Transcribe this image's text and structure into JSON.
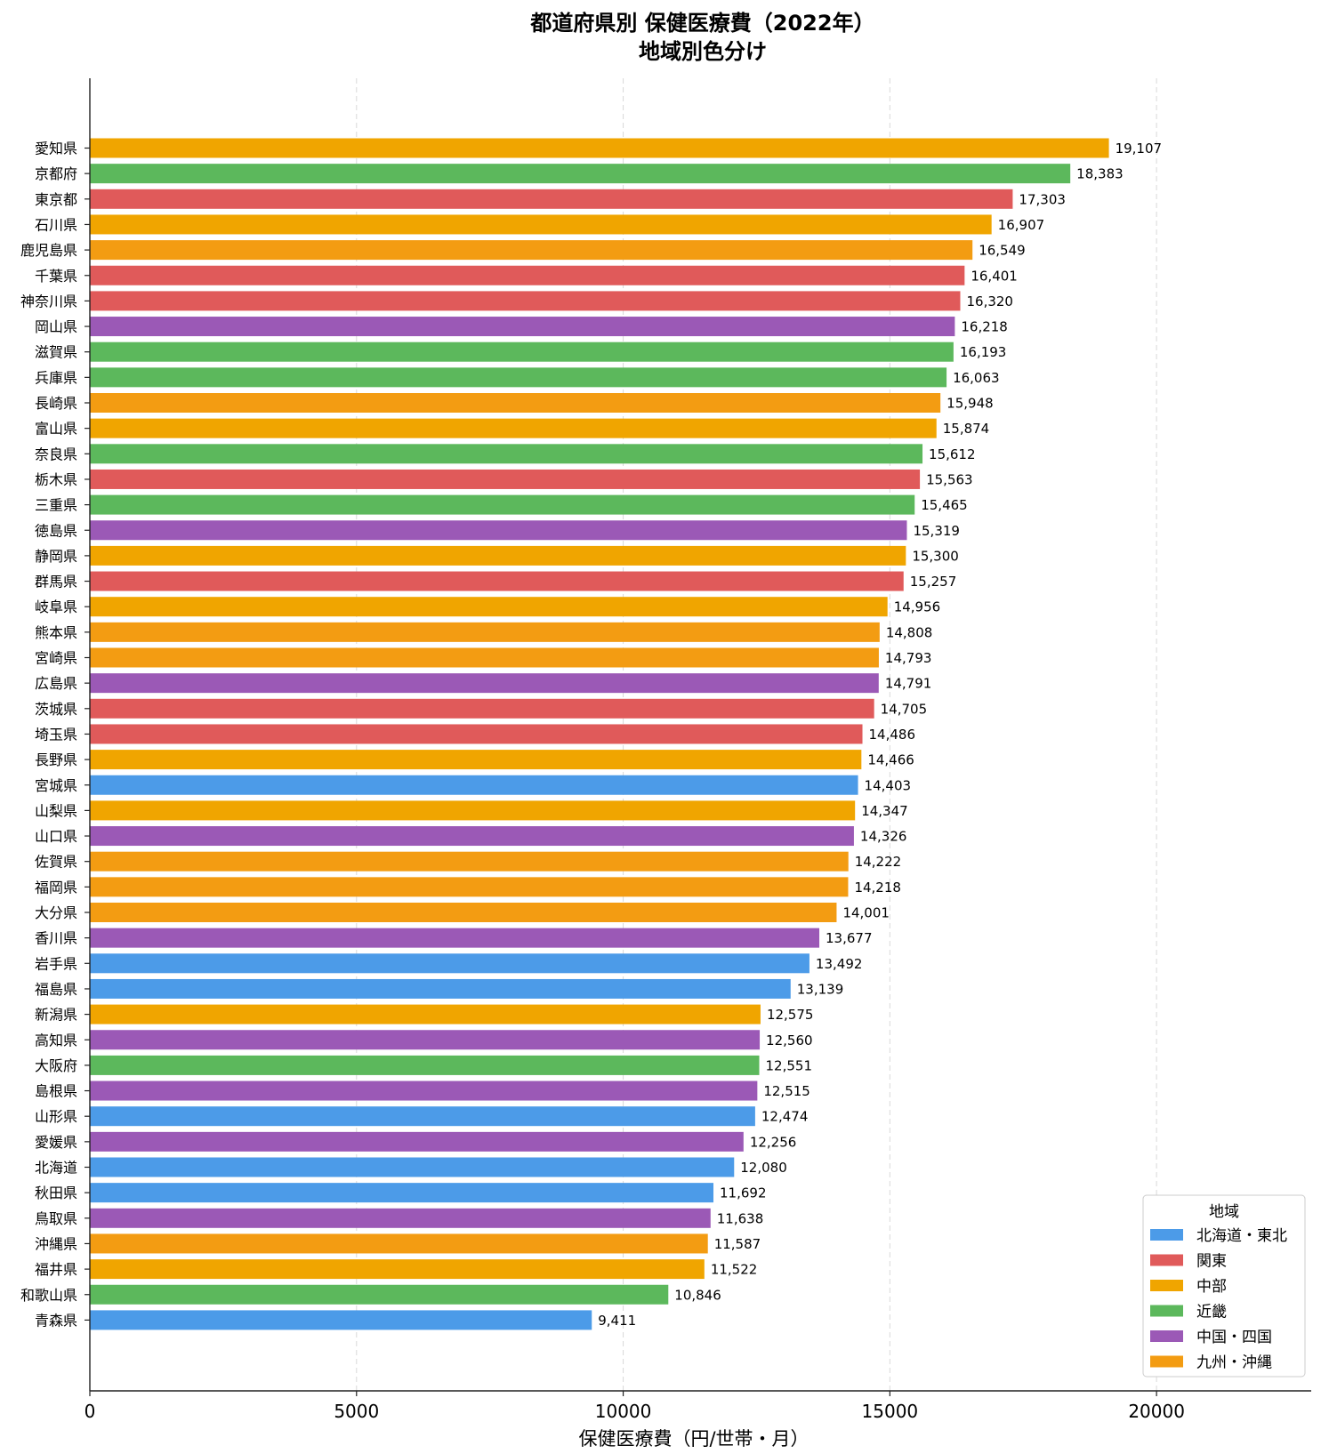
{
  "chart_data": {
    "type": "bar",
    "orientation": "horizontal",
    "title": "都道府県別 保健医療費（2022年）",
    "subtitle": "地域別色分け",
    "xlabel": "保健医療費（円/世帯・月）",
    "ylabel": "",
    "xlim": [
      0,
      22900
    ],
    "xticks": [
      "0",
      "5000",
      "10000",
      "15000",
      "20000"
    ],
    "xtick_values": [
      0,
      5000,
      10000,
      15000,
      20000
    ],
    "grid": "vertical dashed",
    "legend_position": "bottom-right",
    "legend_title": "地域",
    "regions": [
      {
        "name": "北海道・東北",
        "color": "#4C9BE8"
      },
      {
        "name": "関東",
        "color": "#E05A5A"
      },
      {
        "name": "中部",
        "color": "#F0A500"
      },
      {
        "name": "近畿",
        "color": "#5CB85C"
      },
      {
        "name": "中国・四国",
        "color": "#9B59B6"
      },
      {
        "name": "九州・沖縄",
        "color": "#F39C12"
      }
    ],
    "categories": [
      "愛知県",
      "京都府",
      "東京都",
      "石川県",
      "鹿児島県",
      "千葉県",
      "神奈川県",
      "岡山県",
      "滋賀県",
      "兵庫県",
      "長崎県",
      "富山県",
      "奈良県",
      "栃木県",
      "三重県",
      "徳島県",
      "静岡県",
      "群馬県",
      "岐阜県",
      "熊本県",
      "宮崎県",
      "広島県",
      "茨城県",
      "埼玉県",
      "長野県",
      "宮城県",
      "山梨県",
      "山口県",
      "佐賀県",
      "福岡県",
      "大分県",
      "香川県",
      "岩手県",
      "福島県",
      "新潟県",
      "高知県",
      "大阪府",
      "島根県",
      "山形県",
      "愛媛県",
      "北海道",
      "秋田県",
      "鳥取県",
      "沖縄県",
      "福井県",
      "和歌山県",
      "青森県"
    ],
    "values": [
      19107,
      18383,
      17303,
      16907,
      16549,
      16401,
      16320,
      16218,
      16193,
      16063,
      15948,
      15874,
      15612,
      15563,
      15465,
      15319,
      15300,
      15257,
      14956,
      14808,
      14793,
      14791,
      14705,
      14486,
      14466,
      14403,
      14347,
      14326,
      14222,
      14218,
      14001,
      13677,
      13492,
      13139,
      12575,
      12560,
      12551,
      12515,
      12474,
      12256,
      12080,
      11692,
      11638,
      11587,
      11522,
      10846,
      9411
    ],
    "value_labels": [
      "19,107",
      "18,383",
      "17,303",
      "16,907",
      "16,549",
      "16,401",
      "16,320",
      "16,218",
      "16,193",
      "16,063",
      "15,948",
      "15,874",
      "15,612",
      "15,563",
      "15,465",
      "15,319",
      "15,300",
      "15,257",
      "14,956",
      "14,808",
      "14,793",
      "14,791",
      "14,705",
      "14,486",
      "14,466",
      "14,403",
      "14,347",
      "14,326",
      "14,222",
      "14,218",
      "14,001",
      "13,677",
      "13,492",
      "13,139",
      "12,575",
      "12,560",
      "12,551",
      "12,515",
      "12,474",
      "12,256",
      "12,080",
      "11,692",
      "11,638",
      "11,587",
      "11,522",
      "10,846",
      "9,411"
    ],
    "region_index": [
      2,
      3,
      1,
      2,
      5,
      1,
      1,
      4,
      3,
      3,
      5,
      2,
      3,
      1,
      3,
      4,
      2,
      1,
      2,
      5,
      5,
      4,
      1,
      1,
      2,
      0,
      2,
      4,
      5,
      5,
      5,
      4,
      0,
      0,
      2,
      4,
      3,
      4,
      0,
      4,
      0,
      0,
      4,
      5,
      2,
      3,
      0
    ]
  }
}
